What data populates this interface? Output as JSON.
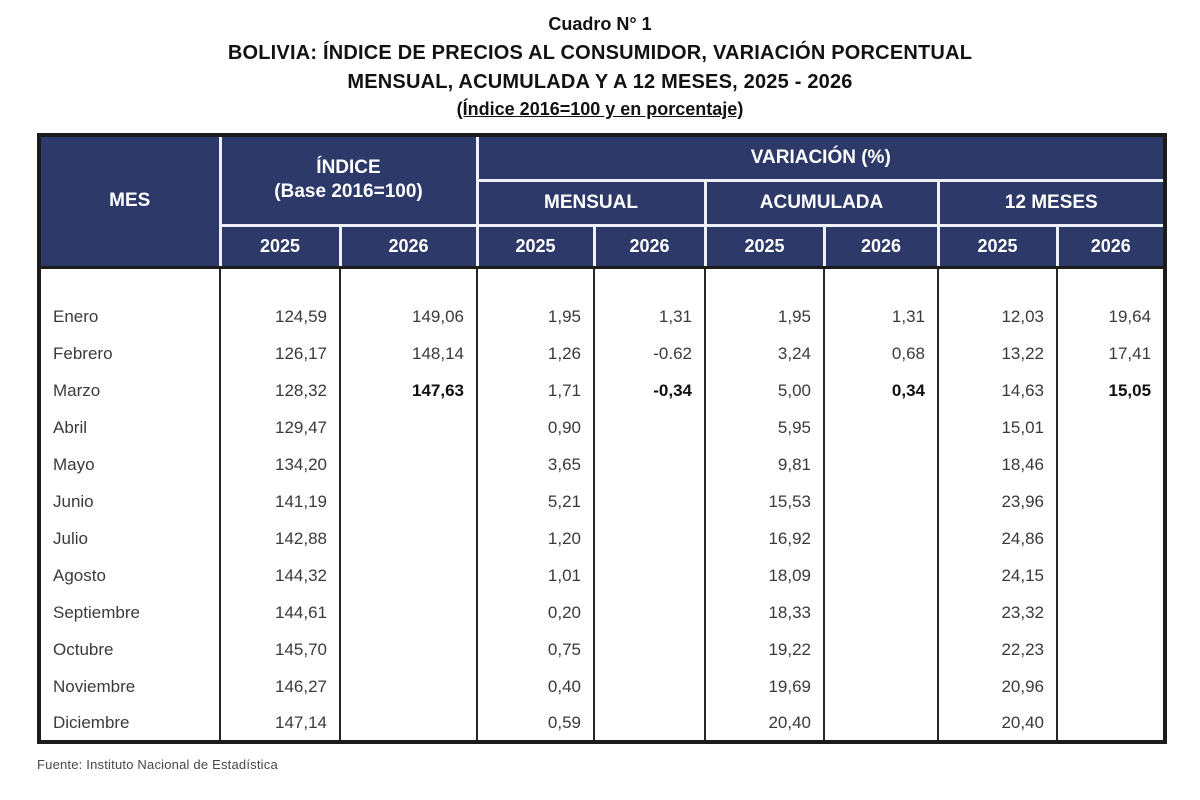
{
  "title": {
    "line1": "Cuadro N° 1",
    "line2": "BOLIVIA: ÍNDICE DE PRECIOS AL CONSUMIDOR, VARIACIÓN PORCENTUAL",
    "line3": "MENSUAL, ACUMULADA Y A 12 MESES, 2025 - 2026",
    "line4": "(Índice 2016=100 y en porcentaje)"
  },
  "table": {
    "header": {
      "mes": "MES",
      "indice_line1": "ÍNDICE",
      "indice_line2": "(Base 2016=100)",
      "variacion": "VARIACIÓN (%)",
      "groups": [
        "MENSUAL",
        "ACUMULADA",
        "12 MESES"
      ],
      "years": [
        "2025",
        "2026"
      ]
    },
    "columns": [
      "MES",
      "ÍNDICE 2025",
      "ÍNDICE 2026",
      "MENSUAL 2025",
      "MENSUAL 2026",
      "ACUMULADA 2025",
      "ACUMULADA 2026",
      "12 MESES 2025",
      "12 MESES 2026"
    ],
    "rows": [
      {
        "mes": "Enero",
        "values": [
          "124,59",
          "149,06",
          "1,95",
          "1,31",
          "1,95",
          "1,31",
          "12,03",
          "19,64"
        ],
        "bold": []
      },
      {
        "mes": "Febrero",
        "values": [
          "126,17",
          "148,14",
          "1,26",
          "-0.62",
          "3,24",
          "0,68",
          "13,22",
          "17,41"
        ],
        "bold": []
      },
      {
        "mes": "Marzo",
        "values": [
          "128,32",
          "147,63",
          "1,71",
          "-0,34",
          "5,00",
          "0,34",
          "14,63",
          "15,05"
        ],
        "bold": [
          1,
          3,
          5,
          7
        ]
      },
      {
        "mes": "Abril",
        "values": [
          "129,47",
          "",
          "0,90",
          "",
          "5,95",
          "",
          "15,01",
          ""
        ],
        "bold": []
      },
      {
        "mes": "Mayo",
        "values": [
          "134,20",
          "",
          "3,65",
          "",
          "9,81",
          "",
          "18,46",
          ""
        ],
        "bold": []
      },
      {
        "mes": "Junio",
        "values": [
          "141,19",
          "",
          "5,21",
          "",
          "15,53",
          "",
          "23,96",
          ""
        ],
        "bold": []
      },
      {
        "mes": "Julio",
        "values": [
          "142,88",
          "",
          "1,20",
          "",
          "16,92",
          "",
          "24,86",
          ""
        ],
        "bold": []
      },
      {
        "mes": "Agosto",
        "values": [
          "144,32",
          "",
          "1,01",
          "",
          "18,09",
          "",
          "24,15",
          ""
        ],
        "bold": []
      },
      {
        "mes": "Septiembre",
        "values": [
          "144,61",
          "",
          "0,20",
          "",
          "18,33",
          "",
          "23,32",
          ""
        ],
        "bold": []
      },
      {
        "mes": "Octubre",
        "values": [
          "145,70",
          "",
          "0,75",
          "",
          "19,22",
          "",
          "22,23",
          ""
        ],
        "bold": []
      },
      {
        "mes": "Noviembre",
        "values": [
          "146,27",
          "",
          "0,40",
          "",
          "19,69",
          "",
          "20,96",
          ""
        ],
        "bold": []
      },
      {
        "mes": "Diciembre",
        "values": [
          "147,14",
          "",
          "0,59",
          "",
          "20,40",
          "",
          "20,40",
          ""
        ],
        "bold": []
      }
    ]
  },
  "footer": {
    "source": "Fuente: Instituto Nacional de Estadística"
  },
  "colors": {
    "header_bg": "#2d3968",
    "header_text": "#ffffff",
    "body_text": "#3a3a3a",
    "border_dark": "#1c1c1c",
    "header_separator": "#eef1f7"
  }
}
